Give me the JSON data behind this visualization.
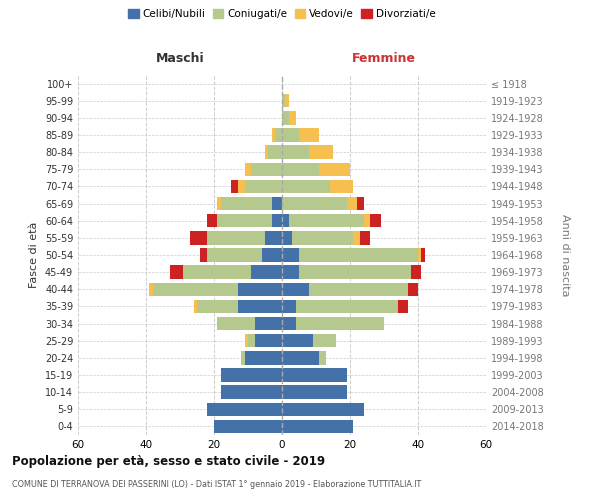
{
  "age_groups": [
    "0-4",
    "5-9",
    "10-14",
    "15-19",
    "20-24",
    "25-29",
    "30-34",
    "35-39",
    "40-44",
    "45-49",
    "50-54",
    "55-59",
    "60-64",
    "65-69",
    "70-74",
    "75-79",
    "80-84",
    "85-89",
    "90-94",
    "95-99",
    "100+"
  ],
  "birth_years": [
    "2014-2018",
    "2009-2013",
    "2004-2008",
    "1999-2003",
    "1994-1998",
    "1989-1993",
    "1984-1988",
    "1979-1983",
    "1974-1978",
    "1969-1973",
    "1964-1968",
    "1959-1963",
    "1954-1958",
    "1949-1953",
    "1944-1948",
    "1939-1943",
    "1934-1938",
    "1929-1933",
    "1924-1928",
    "1919-1923",
    "≤ 1918"
  ],
  "male": {
    "celibi": [
      20,
      22,
      18,
      18,
      11,
      8,
      8,
      13,
      13,
      9,
      6,
      5,
      3,
      3,
      0,
      0,
      0,
      0,
      0,
      0,
      0
    ],
    "coniugati": [
      0,
      0,
      0,
      0,
      1,
      2,
      11,
      12,
      25,
      20,
      16,
      17,
      16,
      15,
      11,
      9,
      4,
      2,
      0,
      0,
      0
    ],
    "vedovi": [
      0,
      0,
      0,
      0,
      0,
      1,
      0,
      1,
      1,
      0,
      0,
      0,
      0,
      1,
      2,
      2,
      1,
      1,
      0,
      0,
      0
    ],
    "divorziati": [
      0,
      0,
      0,
      0,
      0,
      0,
      0,
      0,
      0,
      4,
      2,
      5,
      3,
      0,
      2,
      0,
      0,
      0,
      0,
      0,
      0
    ]
  },
  "female": {
    "nubili": [
      21,
      24,
      19,
      19,
      11,
      9,
      4,
      4,
      8,
      5,
      5,
      3,
      2,
      0,
      0,
      0,
      0,
      0,
      0,
      0,
      0
    ],
    "coniugate": [
      0,
      0,
      0,
      0,
      2,
      7,
      26,
      30,
      29,
      33,
      35,
      18,
      22,
      19,
      14,
      11,
      8,
      5,
      2,
      1,
      0
    ],
    "vedove": [
      0,
      0,
      0,
      0,
      0,
      0,
      0,
      0,
      0,
      0,
      1,
      2,
      2,
      3,
      7,
      9,
      7,
      6,
      2,
      1,
      0
    ],
    "divorziate": [
      0,
      0,
      0,
      0,
      0,
      0,
      0,
      3,
      3,
      3,
      1,
      3,
      3,
      2,
      0,
      0,
      0,
      0,
      0,
      0,
      0
    ]
  },
  "colors": {
    "celibi": "#4472a8",
    "coniugati": "#b5c98e",
    "vedovi": "#f5c050",
    "divorziati": "#cc2222"
  },
  "title": "Popolazione per età, sesso e stato civile - 2019",
  "subtitle": "COMUNE DI TERRANOVA DEI PASSERINI (LO) - Dati ISTAT 1° gennaio 2019 - Elaborazione TUTTITALIA.IT",
  "xlabel_left": "Maschi",
  "xlabel_right": "Femmine",
  "ylabel_left": "Fasce di età",
  "ylabel_right": "Anni di nascita",
  "xlim": 60,
  "background_color": "#ffffff",
  "grid_color": "#cccccc"
}
